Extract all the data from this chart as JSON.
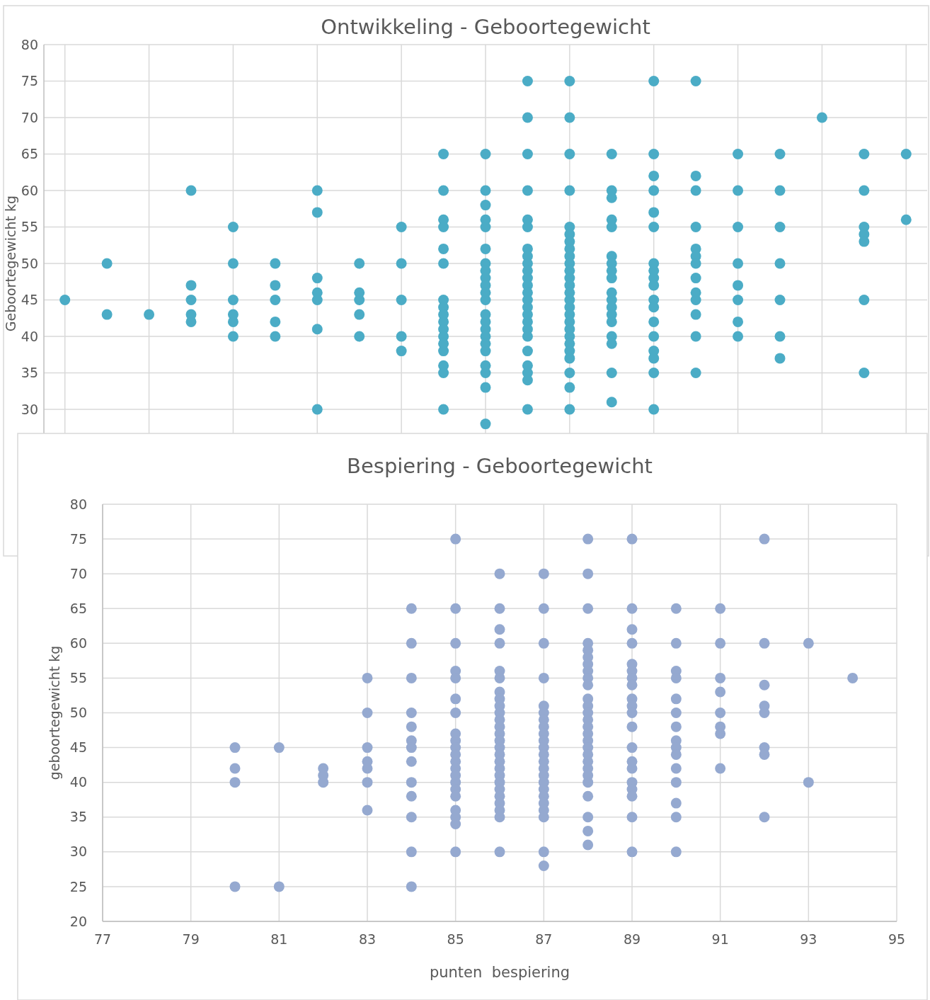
{
  "chart_data": [
    {
      "type": "scatter",
      "title": "Ontwikkeling - Geboortegewicht",
      "ylabel": "Geboortegewicht kg",
      "categories": [
        null,
        null,
        null,
        null,
        null,
        null,
        null,
        null,
        null,
        null,
        null,
        null,
        null,
        null,
        null,
        null,
        null,
        null,
        null,
        null,
        null
      ],
      "ylim": [
        20,
        80
      ],
      "yticks": [
        30,
        35,
        40,
        45,
        50,
        55,
        60,
        65,
        70,
        75,
        80
      ],
      "grid": true,
      "marker": "circle",
      "series": [
        {
          "color": "#4bacc6",
          "values": [
            45,
            50,
            43,
            60,
            55,
            50,
            60,
            50,
            55,
            65,
            65,
            75,
            75,
            65,
            75,
            75,
            65,
            65,
            70,
            65,
            65
          ]
        },
        {
          "color": "#4bacc6",
          "values": [
            null,
            43,
            null,
            47,
            50,
            47,
            57,
            46,
            50,
            60,
            60,
            70,
            70,
            60,
            65,
            62,
            60,
            60,
            null,
            60,
            56
          ]
        },
        {
          "color": "#4bacc6",
          "values": [
            null,
            null,
            null,
            45,
            45,
            45,
            48,
            45,
            45,
            56,
            58,
            65,
            65,
            59,
            62,
            60,
            55,
            55,
            null,
            55,
            null
          ]
        },
        {
          "color": "#4bacc6",
          "values": [
            null,
            null,
            null,
            43,
            43,
            42,
            46,
            43,
            40,
            55,
            56,
            60,
            60,
            56,
            60,
            55,
            50,
            50,
            null,
            54,
            null
          ]
        },
        {
          "color": "#4bacc6",
          "values": [
            null,
            null,
            null,
            42,
            42,
            40,
            45,
            40,
            38,
            52,
            55,
            56,
            55,
            55,
            57,
            52,
            47,
            45,
            null,
            53,
            null
          ]
        },
        {
          "color": "#4bacc6",
          "values": [
            null,
            null,
            null,
            null,
            40,
            null,
            41,
            null,
            null,
            50,
            52,
            55,
            54,
            51,
            55,
            51,
            45,
            40,
            null,
            45,
            null
          ]
        },
        {
          "color": "#4bacc6",
          "values": [
            null,
            null,
            null,
            null,
            null,
            null,
            30,
            null,
            null,
            45,
            50,
            52,
            53,
            50,
            50,
            50,
            42,
            37,
            null,
            35,
            null
          ]
        },
        {
          "color": "#4bacc6",
          "values": [
            null,
            null,
            null,
            null,
            null,
            null,
            null,
            null,
            null,
            44,
            49,
            51,
            52,
            49,
            49,
            48,
            40,
            null,
            null,
            null,
            null
          ]
        },
        {
          "color": "#4bacc6",
          "values": [
            null,
            null,
            null,
            null,
            null,
            null,
            null,
            null,
            null,
            43,
            48,
            50,
            51,
            48,
            48,
            46,
            null,
            null,
            null,
            null,
            null
          ]
        },
        {
          "color": "#4bacc6",
          "values": [
            null,
            null,
            null,
            null,
            null,
            null,
            null,
            null,
            null,
            42,
            47,
            49,
            50,
            46,
            47,
            45,
            null,
            null,
            null,
            null,
            null
          ]
        },
        {
          "color": "#4bacc6",
          "values": [
            null,
            null,
            null,
            null,
            null,
            null,
            null,
            null,
            null,
            41,
            46,
            48,
            49,
            45,
            45,
            43,
            null,
            null,
            null,
            null,
            null
          ]
        },
        {
          "color": "#4bacc6",
          "values": [
            null,
            null,
            null,
            null,
            null,
            null,
            null,
            null,
            null,
            40,
            45,
            47,
            48,
            44,
            44,
            40,
            null,
            null,
            null,
            null,
            null
          ]
        },
        {
          "color": "#4bacc6",
          "values": [
            null,
            null,
            null,
            null,
            null,
            null,
            null,
            null,
            null,
            39,
            43,
            46,
            47,
            43,
            42,
            35,
            null,
            null,
            null,
            null,
            null
          ]
        },
        {
          "color": "#4bacc6",
          "values": [
            null,
            null,
            null,
            null,
            null,
            null,
            null,
            null,
            null,
            38,
            42,
            45,
            46,
            42,
            40,
            null,
            null,
            null,
            null,
            null,
            null
          ]
        },
        {
          "color": "#4bacc6",
          "values": [
            null,
            null,
            null,
            null,
            null,
            null,
            null,
            null,
            null,
            36,
            41,
            44,
            45,
            40,
            38,
            null,
            null,
            null,
            null,
            null,
            null
          ]
        },
        {
          "color": "#4bacc6",
          "values": [
            null,
            null,
            null,
            null,
            null,
            null,
            null,
            null,
            null,
            35,
            40,
            43,
            44,
            39,
            37,
            null,
            null,
            null,
            null,
            null,
            null
          ]
        },
        {
          "color": "#4bacc6",
          "values": [
            null,
            null,
            null,
            null,
            null,
            null,
            null,
            null,
            null,
            30,
            39,
            42,
            43,
            35,
            35,
            null,
            null,
            null,
            null,
            null,
            null
          ]
        },
        {
          "color": "#4bacc6",
          "values": [
            null,
            null,
            null,
            null,
            null,
            null,
            null,
            null,
            null,
            null,
            38,
            41,
            42,
            31,
            30,
            null,
            null,
            null,
            null,
            null,
            null
          ]
        },
        {
          "color": "#4bacc6",
          "values": [
            null,
            null,
            null,
            null,
            null,
            null,
            null,
            null,
            null,
            null,
            36,
            40,
            41,
            null,
            null,
            null,
            null,
            null,
            null,
            null,
            null
          ]
        },
        {
          "color": "#4bacc6",
          "values": [
            null,
            null,
            null,
            null,
            null,
            null,
            null,
            null,
            null,
            null,
            35,
            38,
            40,
            null,
            null,
            null,
            null,
            null,
            null,
            null,
            null
          ]
        },
        {
          "color": "#4bacc6",
          "values": [
            null,
            null,
            null,
            null,
            null,
            null,
            null,
            null,
            null,
            null,
            33,
            36,
            39,
            null,
            null,
            null,
            null,
            null,
            null,
            null,
            null
          ]
        },
        {
          "color": "#4bacc6",
          "values": [
            null,
            null,
            null,
            null,
            null,
            null,
            null,
            null,
            null,
            null,
            28,
            35,
            38,
            null,
            null,
            null,
            null,
            null,
            null,
            null,
            null
          ]
        },
        {
          "color": "#4bacc6",
          "values": [
            null,
            null,
            null,
            null,
            null,
            null,
            null,
            null,
            null,
            null,
            null,
            34,
            37,
            null,
            null,
            null,
            null,
            null,
            null,
            null,
            null
          ]
        },
        {
          "color": "#4bacc6",
          "values": [
            null,
            null,
            null,
            null,
            null,
            null,
            null,
            null,
            null,
            null,
            null,
            30,
            35,
            null,
            null,
            null,
            null,
            null,
            null,
            null,
            null
          ]
        },
        {
          "color": "#4bacc6",
          "values": [
            null,
            null,
            null,
            null,
            null,
            null,
            null,
            null,
            null,
            null,
            null,
            null,
            33,
            null,
            null,
            null,
            null,
            null,
            null,
            null,
            null
          ]
        },
        {
          "color": "#4bacc6",
          "values": [
            null,
            null,
            null,
            null,
            null,
            null,
            null,
            null,
            null,
            null,
            null,
            null,
            30,
            null,
            null,
            null,
            null,
            null,
            null,
            null,
            null
          ]
        }
      ]
    },
    {
      "type": "scatter",
      "title": "Bespiering - Geboortegewicht",
      "xlabel": "punten  bespiering",
      "ylabel": "geboortegewicht kg",
      "xlim": [
        77,
        95
      ],
      "xticks": [
        77,
        79,
        81,
        83,
        85,
        87,
        89,
        91,
        93,
        95
      ],
      "ylim": [
        20,
        80
      ],
      "yticks": [
        20,
        25,
        30,
        35,
        40,
        45,
        50,
        55,
        60,
        65,
        70,
        75,
        80
      ],
      "grid": true,
      "marker": "circle",
      "series": [
        {
          "color": "#95a9d0",
          "x": [
            80,
            80,
            80,
            80,
            81,
            81,
            82,
            82,
            82,
            83,
            83,
            83,
            83,
            83,
            83,
            83,
            84,
            84,
            84,
            84,
            84,
            84,
            84,
            84,
            84,
            84,
            84,
            84,
            84,
            85,
            85,
            85,
            85,
            85,
            85,
            85,
            85,
            85,
            85,
            85,
            85,
            85,
            85,
            85,
            85,
            85,
            85,
            85,
            85,
            85,
            86,
            86,
            86,
            86,
            86,
            86,
            86,
            86,
            86,
            86,
            86,
            86,
            86,
            86,
            86,
            86,
            86,
            86,
            86,
            86,
            86,
            86,
            86,
            86,
            86,
            86,
            87,
            87,
            87,
            87,
            87,
            87,
            87,
            87,
            87,
            87,
            87,
            87,
            87,
            87,
            87,
            87,
            87,
            87,
            87,
            87,
            87,
            87,
            87,
            88,
            88,
            88,
            88,
            88,
            88,
            88,
            88,
            88,
            88,
            88,
            88,
            88,
            88,
            88,
            88,
            88,
            88,
            88,
            88,
            88,
            88,
            88,
            88,
            88,
            88,
            88,
            89,
            89,
            89,
            89,
            89,
            89,
            89,
            89,
            89,
            89,
            89,
            89,
            89,
            89,
            89,
            89,
            89,
            89,
            89,
            89,
            90,
            90,
            90,
            90,
            90,
            90,
            90,
            90,
            90,
            90,
            90,
            90,
            90,
            90,
            90,
            91,
            91,
            91,
            91,
            91,
            91,
            91,
            91,
            92,
            92,
            92,
            92,
            92,
            92,
            92,
            92,
            93,
            93,
            94
          ],
          "values": [
            45,
            42,
            40,
            25,
            45,
            25,
            42,
            41,
            40,
            55,
            50,
            45,
            43,
            42,
            40,
            36,
            65,
            60,
            55,
            50,
            48,
            46,
            45,
            43,
            40,
            38,
            35,
            30,
            25,
            75,
            65,
            60,
            56,
            55,
            52,
            50,
            47,
            46,
            45,
            44,
            43,
            42,
            41,
            40,
            39,
            38,
            36,
            35,
            34,
            30,
            70,
            65,
            62,
            60,
            56,
            55,
            53,
            52,
            51,
            50,
            49,
            48,
            47,
            46,
            45,
            44,
            43,
            42,
            41,
            40,
            39,
            38,
            37,
            36,
            35,
            30,
            70,
            65,
            60,
            55,
            51,
            50,
            49,
            48,
            47,
            46,
            45,
            44,
            43,
            42,
            41,
            40,
            39,
            38,
            37,
            36,
            35,
            30,
            28,
            75,
            70,
            65,
            60,
            59,
            58,
            57,
            56,
            55,
            54,
            52,
            51,
            50,
            49,
            48,
            47,
            46,
            45,
            44,
            43,
            42,
            41,
            40,
            38,
            35,
            33,
            31,
            75,
            65,
            62,
            60,
            57,
            56,
            55,
            54,
            52,
            51,
            50,
            48,
            45,
            43,
            42,
            40,
            39,
            38,
            35,
            30,
            65,
            60,
            56,
            55,
            52,
            50,
            48,
            46,
            45,
            44,
            42,
            40,
            37,
            35,
            30,
            65,
            60,
            55,
            53,
            50,
            48,
            47,
            42,
            75,
            60,
            54,
            51,
            50,
            45,
            44,
            35,
            60,
            40,
            55
          ]
        }
      ]
    }
  ]
}
